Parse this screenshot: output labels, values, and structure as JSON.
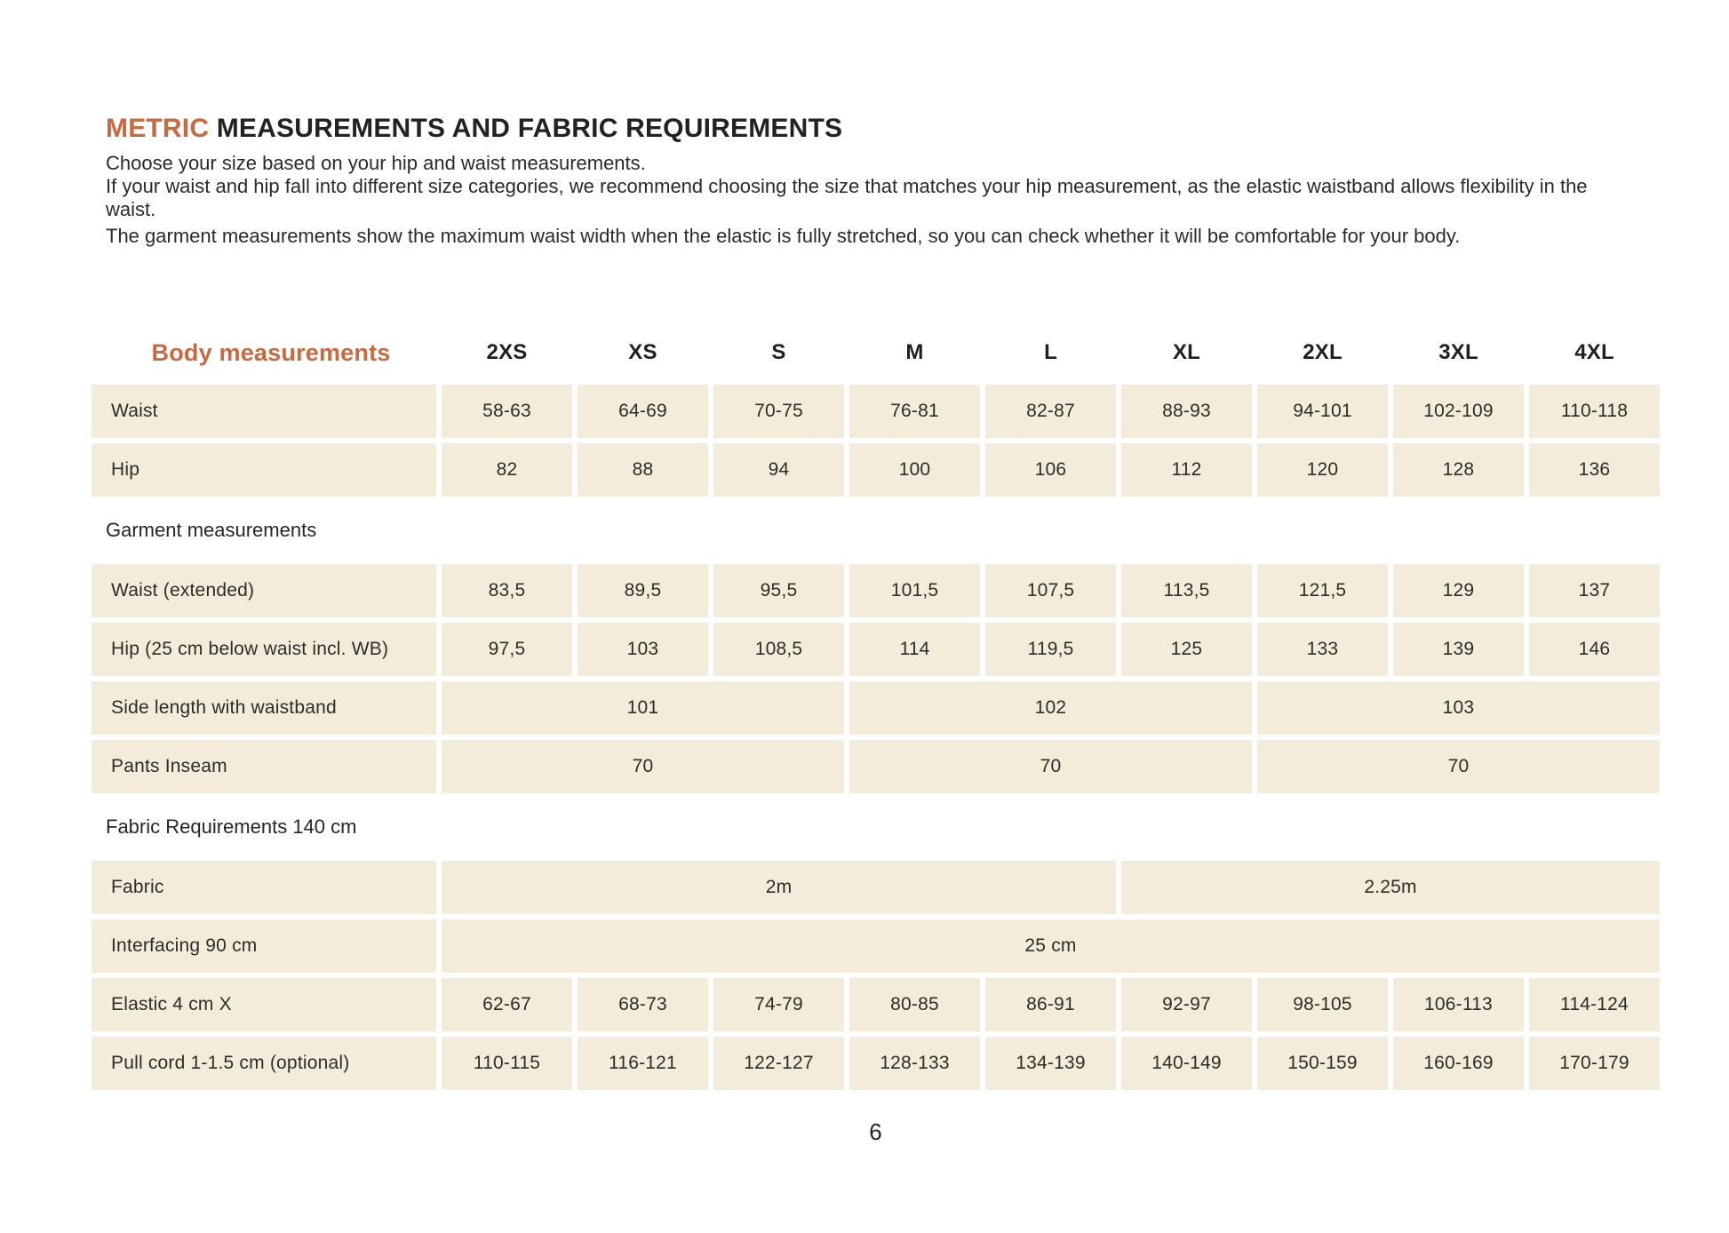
{
  "page": {
    "title_accent": "METRIC",
    "title_rest": " MEASUREMENTS AND FABRIC REQUIREMENTS",
    "intro": [
      "Choose your size based on your hip and waist measurements.",
      "If your waist and hip fall into different size categories, we recommend choosing the size that matches your hip measurement, as the elastic waistband allows flexibility in the waist.",
      "The garment measurements show the maximum waist width when the elastic is fully stretched, so you can check whether it will be comfortable for your body."
    ],
    "page_number": "6"
  },
  "colors": {
    "accent": "#c66a41",
    "cell_bg": "#f3ecdb",
    "text": "#262626"
  },
  "table": {
    "header_label": "Body measurements",
    "sizes": [
      "2XS",
      "XS",
      "S",
      "M",
      "L",
      "XL",
      "2XL",
      "3XL",
      "4XL"
    ],
    "rows": [
      {
        "type": "data",
        "label": "Waist",
        "cells": [
          {
            "value": "58-63",
            "span": 1
          },
          {
            "value": "64-69",
            "span": 1
          },
          {
            "value": "70-75",
            "span": 1
          },
          {
            "value": "76-81",
            "span": 1
          },
          {
            "value": "82-87",
            "span": 1
          },
          {
            "value": "88-93",
            "span": 1
          },
          {
            "value": "94-101",
            "span": 1
          },
          {
            "value": "102-109",
            "span": 1
          },
          {
            "value": "110-118",
            "span": 1
          }
        ]
      },
      {
        "type": "data",
        "label": "Hip",
        "cells": [
          {
            "value": "82",
            "span": 1
          },
          {
            "value": "88",
            "span": 1
          },
          {
            "value": "94",
            "span": 1
          },
          {
            "value": "100",
            "span": 1
          },
          {
            "value": "106",
            "span": 1
          },
          {
            "value": "112",
            "span": 1
          },
          {
            "value": "120",
            "span": 1
          },
          {
            "value": "128",
            "span": 1
          },
          {
            "value": "136",
            "span": 1
          }
        ]
      },
      {
        "type": "section",
        "label": "Garment measurements"
      },
      {
        "type": "data",
        "label": "Waist (extended)",
        "cells": [
          {
            "value": "83,5",
            "span": 1
          },
          {
            "value": "89,5",
            "span": 1
          },
          {
            "value": "95,5",
            "span": 1
          },
          {
            "value": "101,5",
            "span": 1
          },
          {
            "value": "107,5",
            "span": 1
          },
          {
            "value": "113,5",
            "span": 1
          },
          {
            "value": "121,5",
            "span": 1
          },
          {
            "value": "129",
            "span": 1
          },
          {
            "value": "137",
            "span": 1
          }
        ]
      },
      {
        "type": "data",
        "label": "Hip (25 cm below waist incl. WB)",
        "cells": [
          {
            "value": "97,5",
            "span": 1
          },
          {
            "value": "103",
            "span": 1
          },
          {
            "value": "108,5",
            "span": 1
          },
          {
            "value": "114",
            "span": 1
          },
          {
            "value": "119,5",
            "span": 1
          },
          {
            "value": "125",
            "span": 1
          },
          {
            "value": "133",
            "span": 1
          },
          {
            "value": "139",
            "span": 1
          },
          {
            "value": "146",
            "span": 1
          }
        ]
      },
      {
        "type": "data",
        "label": "Side length with waistband",
        "cells": [
          {
            "value": "101",
            "span": 3
          },
          {
            "value": "102",
            "span": 3
          },
          {
            "value": "103",
            "span": 3
          }
        ]
      },
      {
        "type": "data",
        "label": "Pants Inseam",
        "cells": [
          {
            "value": "70",
            "span": 3
          },
          {
            "value": "70",
            "span": 3
          },
          {
            "value": "70",
            "span": 3
          }
        ]
      },
      {
        "type": "section",
        "label": "Fabric Requirements 140 cm"
      },
      {
        "type": "data",
        "label": "Fabric",
        "cells": [
          {
            "value": "2m",
            "span": 5
          },
          {
            "value": "2.25m",
            "span": 4
          }
        ]
      },
      {
        "type": "data",
        "label": "Interfacing 90 cm",
        "cells": [
          {
            "value": "25 cm",
            "span": 9
          }
        ]
      },
      {
        "type": "data",
        "label": "Elastic 4 cm X",
        "cells": [
          {
            "value": "62-67",
            "span": 1
          },
          {
            "value": "68-73",
            "span": 1
          },
          {
            "value": "74-79",
            "span": 1
          },
          {
            "value": "80-85",
            "span": 1
          },
          {
            "value": "86-91",
            "span": 1
          },
          {
            "value": "92-97",
            "span": 1
          },
          {
            "value": "98-105",
            "span": 1
          },
          {
            "value": "106-113",
            "span": 1
          },
          {
            "value": "114-124",
            "span": 1
          }
        ]
      },
      {
        "type": "data",
        "label": "Pull cord 1-1.5 cm (optional)",
        "cells": [
          {
            "value": "110-115",
            "span": 1
          },
          {
            "value": "116-121",
            "span": 1
          },
          {
            "value": "122-127",
            "span": 1
          },
          {
            "value": "128-133",
            "span": 1
          },
          {
            "value": "134-139",
            "span": 1
          },
          {
            "value": "140-149",
            "span": 1
          },
          {
            "value": "150-159",
            "span": 1
          },
          {
            "value": "160-169",
            "span": 1
          },
          {
            "value": "170-179",
            "span": 1
          }
        ]
      }
    ]
  }
}
